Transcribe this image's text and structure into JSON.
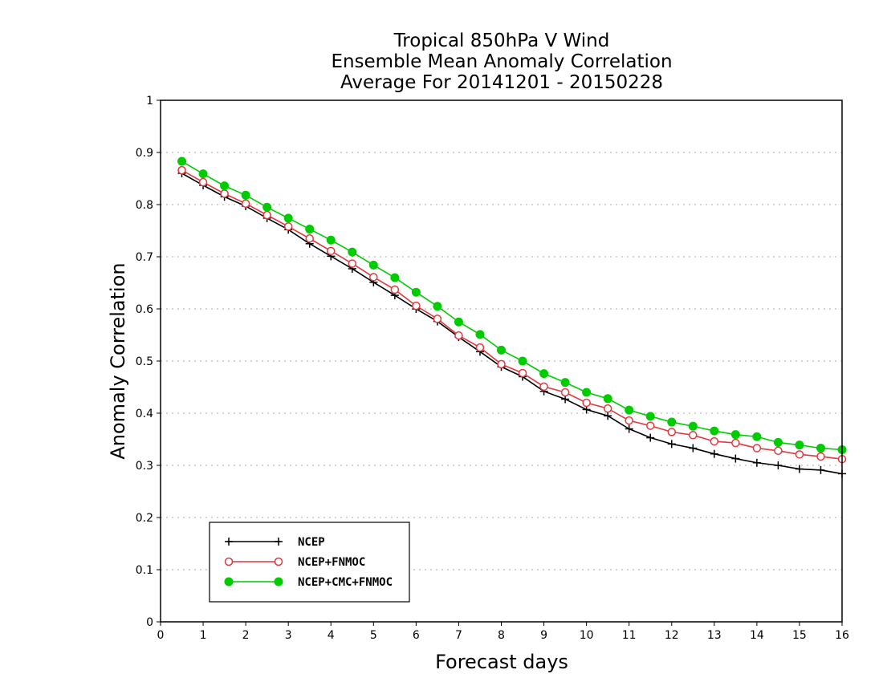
{
  "chart_data": {
    "type": "line",
    "title": [
      "Tropical 850hPa V Wind",
      "Ensemble Mean Anomaly Correlation",
      "Average For 20141201 - 20150228"
    ],
    "xlabel": "Forecast days",
    "ylabel": "Anomaly Correlation",
    "xlim": [
      0,
      16
    ],
    "ylim": [
      0,
      1
    ],
    "xticks": [
      "0",
      "1",
      "2",
      "3",
      "4",
      "5",
      "6",
      "7",
      "8",
      "9",
      "10",
      "11",
      "12",
      "13",
      "14",
      "15",
      "16"
    ],
    "yticks": [
      "0",
      "0.1",
      "0.2",
      "0.3",
      "0.4",
      "0.5",
      "0.6",
      "0.7",
      "0.8",
      "0.9",
      "1"
    ],
    "grid": true,
    "legend_position": "bottom-left",
    "x": [
      0.5,
      1,
      1.5,
      2,
      2.5,
      3,
      3.5,
      4,
      4.5,
      5,
      5.5,
      6,
      6.5,
      7,
      7.5,
      8,
      8.5,
      9,
      9.5,
      10,
      10.5,
      11,
      11.5,
      12,
      12.5,
      13,
      13.5,
      14,
      14.5,
      15,
      15.5,
      16
    ],
    "series": [
      {
        "name": "NCEP",
        "color": "#000000",
        "marker": "plus",
        "values": [
          0.86,
          0.837,
          0.815,
          0.797,
          0.774,
          0.752,
          0.725,
          0.701,
          0.677,
          0.651,
          0.626,
          0.6,
          0.576,
          0.546,
          0.518,
          0.489,
          0.47,
          0.442,
          0.427,
          0.407,
          0.395,
          0.37,
          0.353,
          0.341,
          0.333,
          0.322,
          0.313,
          0.305,
          0.3,
          0.293,
          0.291,
          0.284
        ]
      },
      {
        "name": "NCEP+FNMOC",
        "color": "#e0393e",
        "marker": "open-circle",
        "values": [
          0.866,
          0.843,
          0.821,
          0.802,
          0.78,
          0.758,
          0.735,
          0.711,
          0.687,
          0.661,
          0.637,
          0.606,
          0.581,
          0.549,
          0.526,
          0.494,
          0.477,
          0.451,
          0.44,
          0.42,
          0.409,
          0.386,
          0.376,
          0.364,
          0.358,
          0.346,
          0.343,
          0.333,
          0.328,
          0.321,
          0.317,
          0.312
        ]
      },
      {
        "name": "NCEP+CMC+FNMOC",
        "color": "#00cc00",
        "marker": "filled-circle",
        "values": [
          0.883,
          0.859,
          0.836,
          0.818,
          0.795,
          0.774,
          0.753,
          0.732,
          0.709,
          0.684,
          0.66,
          0.632,
          0.605,
          0.575,
          0.551,
          0.521,
          0.5,
          0.476,
          0.459,
          0.44,
          0.428,
          0.406,
          0.394,
          0.383,
          0.375,
          0.366,
          0.359,
          0.355,
          0.344,
          0.339,
          0.333,
          0.33
        ]
      }
    ]
  }
}
